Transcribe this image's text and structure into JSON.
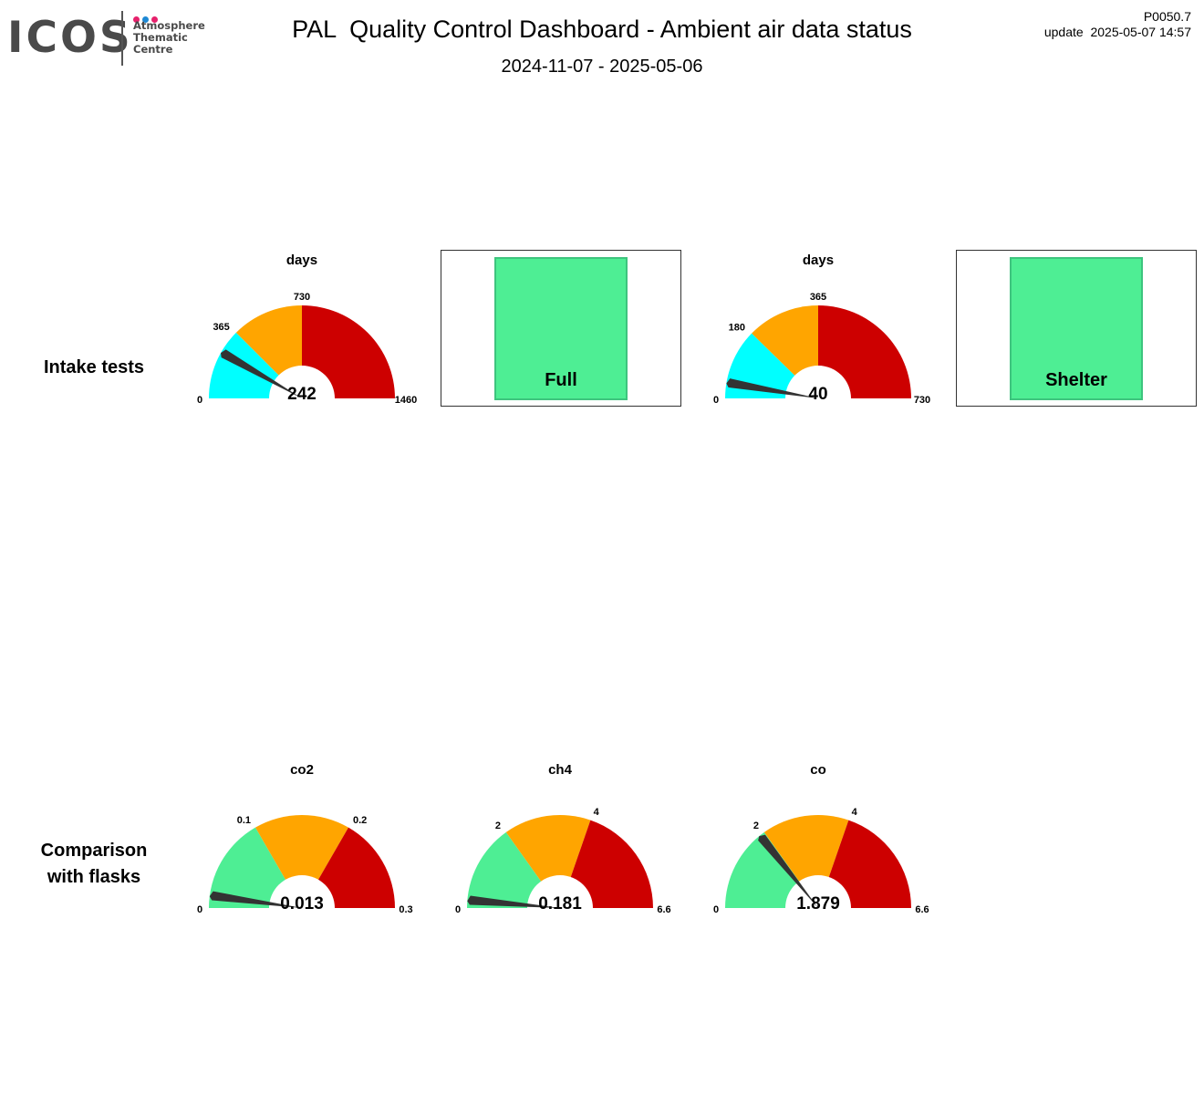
{
  "logo": {
    "text": "ICOS",
    "subtitle": [
      "Atmosphere",
      "Thematic",
      "Centre"
    ],
    "dot_colors": [
      "#e6216c",
      "#1e88d4",
      "#e6216c"
    ]
  },
  "header": {
    "title": "PAL  Quality Control Dashboard - Ambient air data status",
    "period": "2024-11-07 - 2025-05-06",
    "code": "P0050.7",
    "update": "update  2025-05-07 14:57"
  },
  "rows": {
    "intake": "Intake tests",
    "flasks": [
      "Comparison",
      "with flasks"
    ]
  },
  "colors": {
    "cyan": "#00ffff",
    "green": "#4eee94",
    "orange": "#ffa500",
    "red": "#cd0000",
    "needle": "#333333"
  },
  "gauges": [
    {
      "id": "intake-days-1",
      "title": "days",
      "value": 242,
      "value_label": "242",
      "min": 0,
      "max": 1460,
      "ticks": [
        {
          "v": 0,
          "label": "0"
        },
        {
          "v": 365,
          "label": "365"
        },
        {
          "v": 730,
          "label": "730"
        },
        {
          "v": 1460,
          "label": "1460"
        }
      ],
      "bands": [
        {
          "from": 0,
          "to": 365,
          "color": "cyan"
        },
        {
          "from": 365,
          "to": 730,
          "color": "orange"
        },
        {
          "from": 730,
          "to": 1460,
          "color": "red"
        }
      ]
    },
    {
      "id": "intake-days-2",
      "title": "days",
      "value": 40,
      "value_label": "40",
      "min": 0,
      "max": 730,
      "ticks": [
        {
          "v": 0,
          "label": "0"
        },
        {
          "v": 180,
          "label": "180"
        },
        {
          "v": 365,
          "label": "365"
        },
        {
          "v": 730,
          "label": "730"
        }
      ],
      "bands": [
        {
          "from": 0,
          "to": 180,
          "color": "cyan"
        },
        {
          "from": 180,
          "to": 365,
          "color": "orange"
        },
        {
          "from": 365,
          "to": 730,
          "color": "red"
        }
      ]
    },
    {
      "id": "flask-co2",
      "title": "co2",
      "value": 0.013,
      "value_label": "0.013",
      "min": 0,
      "max": 0.3,
      "ticks": [
        {
          "v": 0,
          "label": "0"
        },
        {
          "v": 0.1,
          "label": "0.1"
        },
        {
          "v": 0.2,
          "label": "0.2"
        },
        {
          "v": 0.3,
          "label": "0.3"
        }
      ],
      "bands": [
        {
          "from": 0,
          "to": 0.1,
          "color": "green"
        },
        {
          "from": 0.1,
          "to": 0.2,
          "color": "orange"
        },
        {
          "from": 0.2,
          "to": 0.3,
          "color": "red"
        }
      ]
    },
    {
      "id": "flask-ch4",
      "title": "ch4",
      "value": 0.181,
      "value_label": "0.181",
      "min": 0,
      "max": 6.6,
      "ticks": [
        {
          "v": 0,
          "label": "0"
        },
        {
          "v": 2,
          "label": "2"
        },
        {
          "v": 4,
          "label": "4"
        },
        {
          "v": 6.6,
          "label": "6.6"
        }
      ],
      "bands": [
        {
          "from": 0,
          "to": 2,
          "color": "green"
        },
        {
          "from": 2,
          "to": 4,
          "color": "orange"
        },
        {
          "from": 4,
          "to": 6.6,
          "color": "red"
        }
      ]
    },
    {
      "id": "flask-co",
      "title": "co",
      "value": 1.879,
      "value_label": "1.879",
      "min": 0,
      "max": 6.6,
      "ticks": [
        {
          "v": 0,
          "label": "0"
        },
        {
          "v": 2,
          "label": "2"
        },
        {
          "v": 4,
          "label": "4"
        },
        {
          "v": 6.6,
          "label": "6.6"
        }
      ],
      "bands": [
        {
          "from": 0,
          "to": 2,
          "color": "green"
        },
        {
          "from": 2,
          "to": 4,
          "color": "orange"
        },
        {
          "from": 4,
          "to": 6.6,
          "color": "red"
        }
      ]
    }
  ],
  "status": [
    {
      "label": "Full",
      "color": "green"
    },
    {
      "label": "Shelter",
      "color": "green"
    }
  ]
}
